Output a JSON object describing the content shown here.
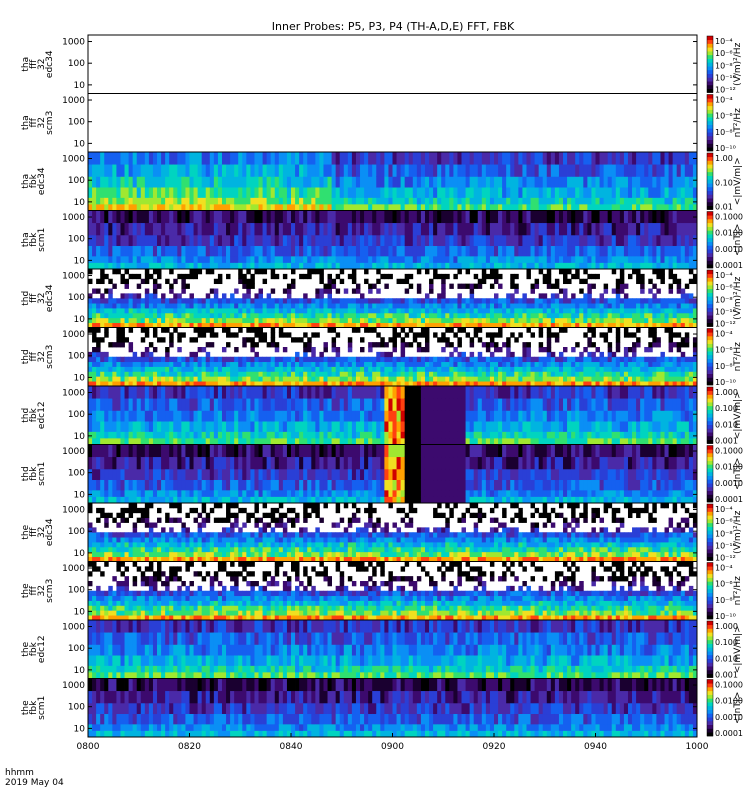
{
  "title": "Inner Probes: P5, P3, P4 (TH-A,D,E) FFT, FBK",
  "footer": {
    "line1": "hhmm",
    "line2": "2019 May 04"
  },
  "colors": {
    "axis": "#000000",
    "background": "#ffffff",
    "colormap": [
      "#000000",
      "#1a0030",
      "#3c0a6e",
      "#4a2aa8",
      "#2a3fd6",
      "#1560f0",
      "#0a8ff5",
      "#00b4e0",
      "#00d4c0",
      "#30e070",
      "#a0e830",
      "#f0e020",
      "#ffa000",
      "#ff4010",
      "#d00000"
    ]
  },
  "chart_data": {
    "type": "heatmap",
    "title": "Inner Probes: P5, P3, P4 (TH-A,D,E) FFT, FBK",
    "x": {
      "label": "hhmm",
      "sublabel": "2019 May 04",
      "range": [
        "0800",
        "1000"
      ],
      "ticks": [
        "0800",
        "0820",
        "0840",
        "0900",
        "0920",
        "0940",
        "1000"
      ]
    },
    "panels": [
      {
        "probe": "tha",
        "label": [
          "tha",
          "fff",
          "32",
          "edc34"
        ],
        "kind": "fff",
        "yscale": "log",
        "yticks": [
          "10",
          "100",
          "1000"
        ],
        "zlabel": "(V/m)²/Hz",
        "cbar_ticks": [
          "10⁻⁴",
          "10⁻⁶",
          "10⁻⁸",
          "10⁻¹⁰",
          "10⁻¹²"
        ],
        "state": "no data"
      },
      {
        "probe": "tha",
        "label": [
          "tha",
          "fff",
          "32",
          "scm3"
        ],
        "kind": "fff",
        "yscale": "log",
        "yticks": [
          "10",
          "100",
          "1000"
        ],
        "zlabel": "nT²/Hz",
        "cbar_ticks": [
          "10⁻⁴",
          "10⁻⁶",
          "10⁻⁸",
          "10⁻¹⁰"
        ],
        "state": "no data"
      },
      {
        "probe": "tha",
        "label": [
          "tha",
          "fbk",
          "edc34"
        ],
        "kind": "fbk",
        "yscale": "log",
        "yticks": [
          "10",
          "100",
          "1000"
        ],
        "zlabel": "<|mV/m|>",
        "cbar_ticks": [
          "1.00",
          "0.10",
          "0.01"
        ],
        "state": "data"
      },
      {
        "probe": "tha",
        "label": [
          "tha",
          "fbk",
          "scm1"
        ],
        "kind": "fbk",
        "yscale": "log",
        "yticks": [
          "10",
          "100",
          "1000"
        ],
        "zlabel": "<|nT|>",
        "cbar_ticks": [
          "0.1000",
          "0.0100",
          "0.0010",
          "0.0001"
        ],
        "state": "data"
      },
      {
        "probe": "thd",
        "label": [
          "thd",
          "fff",
          "32",
          "edc34"
        ],
        "kind": "fff",
        "yscale": "log",
        "yticks": [
          "10",
          "100",
          "1000"
        ],
        "zlabel": "(V/m)²/Hz",
        "cbar_ticks": [
          "10⁻⁴",
          "10⁻⁶",
          "10⁻⁸",
          "10⁻¹⁰",
          "10⁻¹²"
        ],
        "state": "data"
      },
      {
        "probe": "thd",
        "label": [
          "thd",
          "fff",
          "32",
          "scm3"
        ],
        "kind": "fff",
        "yscale": "log",
        "yticks": [
          "10",
          "100",
          "1000"
        ],
        "zlabel": "nT²/Hz",
        "cbar_ticks": [
          "10⁻⁴",
          "10⁻⁶",
          "10⁻⁸",
          "10⁻¹⁰"
        ],
        "state": "data"
      },
      {
        "probe": "thd",
        "label": [
          "thd",
          "fbk",
          "edc12"
        ],
        "kind": "fbk",
        "yscale": "log",
        "yticks": [
          "10",
          "100",
          "1000"
        ],
        "zlabel": "<|mV/m|>",
        "cbar_ticks": [
          "1.000",
          "0.100",
          "0.010",
          "0.001"
        ],
        "state": "data"
      },
      {
        "probe": "thd",
        "label": [
          "thd",
          "fbk",
          "scm1"
        ],
        "kind": "fbk",
        "yscale": "log",
        "yticks": [
          "10",
          "100",
          "1000"
        ],
        "zlabel": "<|nT|>",
        "cbar_ticks": [
          "0.1000",
          "0.0100",
          "0.0010",
          "0.0001"
        ],
        "state": "data"
      },
      {
        "probe": "the",
        "label": [
          "the",
          "fff",
          "32",
          "edc34"
        ],
        "kind": "fff",
        "yscale": "log",
        "yticks": [
          "10",
          "100",
          "1000"
        ],
        "zlabel": "(V/m)²/Hz",
        "cbar_ticks": [
          "10⁻⁴",
          "10⁻⁶",
          "10⁻⁸",
          "10⁻¹⁰",
          "10⁻¹²"
        ],
        "state": "data"
      },
      {
        "probe": "the",
        "label": [
          "the",
          "fff",
          "32",
          "scm3"
        ],
        "kind": "fff",
        "yscale": "log",
        "yticks": [
          "10",
          "100",
          "1000"
        ],
        "zlabel": "nT²/Hz",
        "cbar_ticks": [
          "10⁻⁴",
          "10⁻⁶",
          "10⁻⁸",
          "10⁻¹⁰"
        ],
        "state": "data"
      },
      {
        "probe": "the",
        "label": [
          "the",
          "fbk",
          "edc12"
        ],
        "kind": "fbk",
        "yscale": "log",
        "yticks": [
          "10",
          "100",
          "1000"
        ],
        "zlabel": "<|mV/m|>",
        "cbar_ticks": [
          "1.000",
          "0.100",
          "0.010",
          "0.001"
        ],
        "state": "data"
      },
      {
        "probe": "the",
        "label": [
          "the",
          "fbk",
          "scm1"
        ],
        "kind": "fbk",
        "yscale": "log",
        "yticks": [
          "10",
          "100",
          "1000"
        ],
        "zlabel": "<|nT|>",
        "cbar_ticks": [
          "0.1000",
          "0.0100",
          "0.0010",
          "0.0001"
        ],
        "state": "data"
      }
    ]
  }
}
